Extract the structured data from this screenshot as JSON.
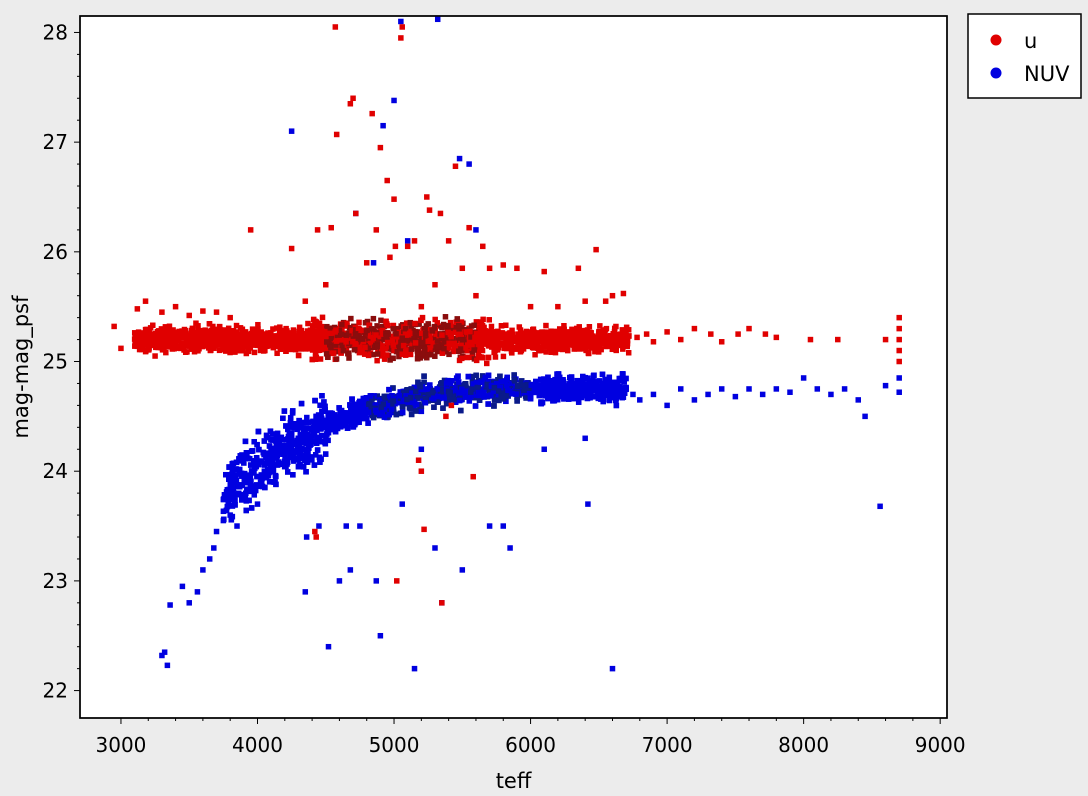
{
  "chart_data": {
    "type": "scatter",
    "title": "",
    "xlabel": "teff",
    "ylabel": "mag-mag_psf",
    "xlim": [
      2700,
      9050
    ],
    "ylim": [
      21.75,
      28.15
    ],
    "xticks": [
      "3000",
      "4000",
      "5000",
      "6000",
      "7000",
      "8000",
      "9000"
    ],
    "yticks": [
      "22",
      "23",
      "24",
      "25",
      "26",
      "27",
      "28"
    ],
    "grid": false,
    "legend": "outside-top-right",
    "series": [
      {
        "name": "u",
        "color": "#e00000",
        "density_description": "dense horizontal band centered near 25.2 from teff ~3100 to ~6700, densest around teff 5000-5300",
        "points": [
          [
            2950,
            25.32
          ],
          [
            3000,
            25.12
          ],
          [
            3120,
            25.48
          ],
          [
            3180,
            25.55
          ],
          [
            3250,
            25.05
          ],
          [
            3300,
            25.45
          ],
          [
            3400,
            25.5
          ],
          [
            3500,
            25.42
          ],
          [
            3600,
            25.46
          ],
          [
            3700,
            25.45
          ],
          [
            3800,
            25.4
          ],
          [
            3950,
            26.2
          ],
          [
            4250,
            26.03
          ],
          [
            4350,
            25.55
          ],
          [
            4440,
            26.2
          ],
          [
            4500,
            25.7
          ],
          [
            4540,
            26.22
          ],
          [
            4570,
            28.05
          ],
          [
            4580,
            27.07
          ],
          [
            4680,
            27.35
          ],
          [
            4700,
            27.4
          ],
          [
            4720,
            26.35
          ],
          [
            4800,
            25.9
          ],
          [
            4840,
            27.26
          ],
          [
            4870,
            26.2
          ],
          [
            4900,
            26.95
          ],
          [
            4950,
            26.65
          ],
          [
            4970,
            25.95
          ],
          [
            5000,
            26.48
          ],
          [
            5010,
            26.05
          ],
          [
            5050,
            27.95
          ],
          [
            5060,
            28.05
          ],
          [
            5100,
            26.05
          ],
          [
            5150,
            26.1
          ],
          [
            5200,
            25.5
          ],
          [
            5240,
            26.5
          ],
          [
            5260,
            26.38
          ],
          [
            5300,
            25.7
          ],
          [
            5340,
            26.35
          ],
          [
            5400,
            26.1
          ],
          [
            5450,
            26.78
          ],
          [
            5500,
            25.85
          ],
          [
            5550,
            26.22
          ],
          [
            5600,
            25.6
          ],
          [
            5650,
            26.05
          ],
          [
            5700,
            25.85
          ],
          [
            5800,
            25.88
          ],
          [
            5900,
            25.85
          ],
          [
            6000,
            25.5
          ],
          [
            6100,
            25.82
          ],
          [
            6200,
            25.5
          ],
          [
            6350,
            25.85
          ],
          [
            6400,
            25.55
          ],
          [
            6480,
            26.02
          ],
          [
            6550,
            25.55
          ],
          [
            6600,
            25.6
          ],
          [
            6680,
            25.62
          ],
          [
            5020,
            23.0
          ],
          [
            5350,
            22.8
          ],
          [
            5220,
            23.47
          ],
          [
            4420,
            23.45
          ],
          [
            4430,
            23.4
          ],
          [
            5580,
            23.95
          ],
          [
            5200,
            24.0
          ],
          [
            5180,
            24.1
          ],
          [
            5420,
            24.6
          ],
          [
            5380,
            24.5
          ],
          [
            6780,
            25.22
          ],
          [
            6850,
            25.25
          ],
          [
            6900,
            25.18
          ],
          [
            7000,
            25.27
          ],
          [
            7100,
            25.2
          ],
          [
            7200,
            25.3
          ],
          [
            7320,
            25.25
          ],
          [
            7400,
            25.18
          ],
          [
            7520,
            25.25
          ],
          [
            7600,
            25.3
          ],
          [
            7720,
            25.25
          ],
          [
            7800,
            25.22
          ],
          [
            8050,
            25.2
          ],
          [
            8250,
            25.2
          ],
          [
            8600,
            25.2
          ],
          [
            8700,
            25.4
          ],
          [
            8700,
            25.3
          ],
          [
            8700,
            25.2
          ],
          [
            8700,
            25.1
          ],
          [
            8700,
            25.0
          ]
        ]
      },
      {
        "name": "NUV",
        "color": "#0000e0",
        "density_description": "curved band rising from ~23.5 near teff 3500 to ~24.75 plateau by teff 6000-6700",
        "points": [
          [
            3300,
            22.32
          ],
          [
            3320,
            22.35
          ],
          [
            3340,
            22.23
          ],
          [
            3360,
            22.78
          ],
          [
            3450,
            22.95
          ],
          [
            3500,
            22.8
          ],
          [
            3560,
            22.9
          ],
          [
            3600,
            23.1
          ],
          [
            3650,
            23.2
          ],
          [
            3680,
            23.3
          ],
          [
            3700,
            23.45
          ],
          [
            3750,
            23.55
          ],
          [
            3800,
            23.6
          ],
          [
            3850,
            23.5
          ],
          [
            3900,
            23.75
          ],
          [
            3950,
            23.9
          ],
          [
            4000,
            23.7
          ],
          [
            4050,
            24.0
          ],
          [
            4150,
            24.3
          ],
          [
            4250,
            27.1
          ],
          [
            4350,
            22.9
          ],
          [
            4360,
            23.4
          ],
          [
            4450,
            23.5
          ],
          [
            4520,
            22.4
          ],
          [
            4600,
            23.0
          ],
          [
            4650,
            23.5
          ],
          [
            4680,
            23.1
          ],
          [
            4720,
            26.35
          ],
          [
            4750,
            23.5
          ],
          [
            4850,
            25.9
          ],
          [
            4870,
            23.0
          ],
          [
            4900,
            22.5
          ],
          [
            4920,
            27.15
          ],
          [
            5000,
            27.38
          ],
          [
            5050,
            28.1
          ],
          [
            5060,
            23.7
          ],
          [
            5100,
            26.1
          ],
          [
            5150,
            22.2
          ],
          [
            5200,
            24.2
          ],
          [
            5300,
            23.3
          ],
          [
            5320,
            28.12
          ],
          [
            5350,
            22.8
          ],
          [
            5480,
            26.85
          ],
          [
            5500,
            23.1
          ],
          [
            5550,
            26.8
          ],
          [
            5600,
            26.2
          ],
          [
            5700,
            23.5
          ],
          [
            5800,
            23.5
          ],
          [
            5850,
            23.3
          ],
          [
            6100,
            24.2
          ],
          [
            6400,
            24.3
          ],
          [
            6420,
            23.7
          ],
          [
            6600,
            22.2
          ],
          [
            6700,
            24.75
          ],
          [
            6750,
            24.7
          ],
          [
            6800,
            24.65
          ],
          [
            6900,
            24.7
          ],
          [
            7000,
            24.6
          ],
          [
            7100,
            24.75
          ],
          [
            7200,
            24.65
          ],
          [
            7300,
            24.7
          ],
          [
            7400,
            24.75
          ],
          [
            7500,
            24.68
          ],
          [
            7600,
            24.75
          ],
          [
            7700,
            24.7
          ],
          [
            7800,
            24.75
          ],
          [
            7900,
            24.72
          ],
          [
            8000,
            24.85
          ],
          [
            8100,
            24.75
          ],
          [
            8200,
            24.7
          ],
          [
            8300,
            24.75
          ],
          [
            8400,
            24.65
          ],
          [
            8450,
            24.5
          ],
          [
            8560,
            23.68
          ],
          [
            8600,
            24.78
          ],
          [
            8700,
            24.85
          ],
          [
            8700,
            24.72
          ]
        ]
      }
    ]
  }
}
